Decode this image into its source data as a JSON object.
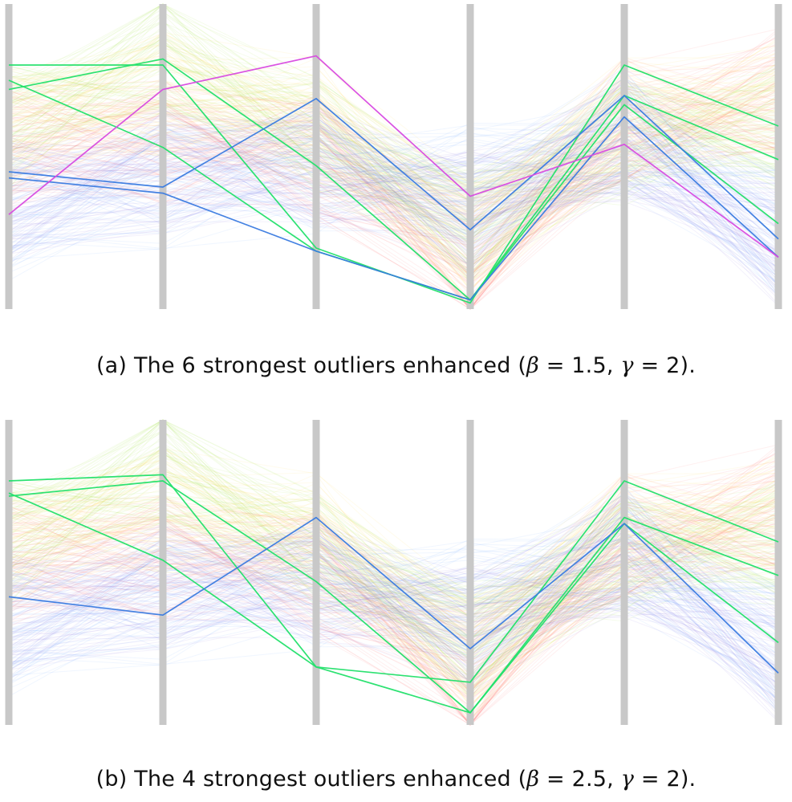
{
  "chart_data": [
    {
      "type": "parallel-coordinates",
      "axes_count": 6,
      "axis_color": "#c8c8c8",
      "caption": {
        "label": "(a)",
        "text_before": "The 6 strongest outliers enhanced (",
        "beta_symbol": "β",
        "beta_value": "= 1.5, ",
        "gamma_symbol": "γ",
        "gamma_value": "= 2).",
        "full": "(a) The 6 strongest outliers enhanced (β = 1.5, γ = 2)."
      },
      "highlighted_lines": [
        {
          "color": "#22e06a",
          "values": [
            0.8,
            0.8,
            0.2,
            0.02,
            0.8,
            0.6
          ]
        },
        {
          "color": "#22e06a",
          "values": [
            0.72,
            0.82,
            0.47,
            0.03,
            0.7,
            0.49
          ]
        },
        {
          "color": "#22e06a",
          "values": [
            0.75,
            0.53,
            0.19,
            0.03,
            0.67,
            0.28
          ]
        },
        {
          "color": "#3a7be0",
          "values": [
            0.45,
            0.4,
            0.69,
            0.26,
            0.7,
            0.23
          ]
        },
        {
          "color": "#3a7be0",
          "values": [
            0.43,
            0.38,
            0.19,
            0.03,
            0.63,
            0.17
          ]
        },
        {
          "color": "#d84ae0",
          "values": [
            0.31,
            0.72,
            0.83,
            0.37,
            0.54,
            0.17
          ]
        }
      ],
      "background_groups": [
        {
          "color": "#9fe23a",
          "values": [
            0.6,
            0.85,
            0.55,
            0.3,
            0.55,
            0.6
          ]
        },
        {
          "color": "#ffd84a",
          "values": [
            0.58,
            0.7,
            0.62,
            0.22,
            0.62,
            0.68
          ]
        },
        {
          "color": "#ff6b6b",
          "values": [
            0.52,
            0.55,
            0.5,
            0.18,
            0.62,
            0.72
          ]
        },
        {
          "color": "#6aa8ff",
          "values": [
            0.3,
            0.4,
            0.45,
            0.4,
            0.58,
            0.25
          ]
        },
        {
          "color": "#8a7ae0",
          "values": [
            0.36,
            0.45,
            0.48,
            0.32,
            0.56,
            0.22
          ]
        }
      ]
    },
    {
      "type": "parallel-coordinates",
      "axes_count": 6,
      "axis_color": "#c8c8c8",
      "caption": {
        "label": "(b)",
        "text_before": "The 4 strongest outliers enhanced (",
        "beta_symbol": "β",
        "beta_value": "= 2.5, ",
        "gamma_symbol": "γ",
        "gamma_value": "= 2).",
        "full": "(b) The 4 strongest outliers enhanced (β = 2.5, γ = 2)."
      },
      "highlighted_lines": [
        {
          "color": "#22e06a",
          "values": [
            0.8,
            0.82,
            0.19,
            0.14,
            0.8,
            0.6
          ]
        },
        {
          "color": "#22e06a",
          "values": [
            0.75,
            0.8,
            0.47,
            0.04,
            0.68,
            0.49
          ]
        },
        {
          "color": "#22e06a",
          "values": [
            0.76,
            0.54,
            0.19,
            0.04,
            0.66,
            0.27
          ]
        },
        {
          "color": "#3a7be0",
          "values": [
            0.42,
            0.36,
            0.68,
            0.25,
            0.66,
            0.17
          ]
        }
      ],
      "background_groups": [
        {
          "color": "#9fe23a",
          "values": [
            0.6,
            0.87,
            0.55,
            0.3,
            0.55,
            0.6
          ]
        },
        {
          "color": "#ffd84a",
          "values": [
            0.58,
            0.7,
            0.62,
            0.22,
            0.62,
            0.68
          ]
        },
        {
          "color": "#ff6b6b",
          "values": [
            0.52,
            0.55,
            0.5,
            0.18,
            0.62,
            0.72
          ]
        },
        {
          "color": "#6aa8ff",
          "values": [
            0.3,
            0.4,
            0.45,
            0.4,
            0.58,
            0.25
          ]
        },
        {
          "color": "#8a7ae0",
          "values": [
            0.36,
            0.45,
            0.48,
            0.32,
            0.56,
            0.22
          ]
        }
      ]
    }
  ]
}
